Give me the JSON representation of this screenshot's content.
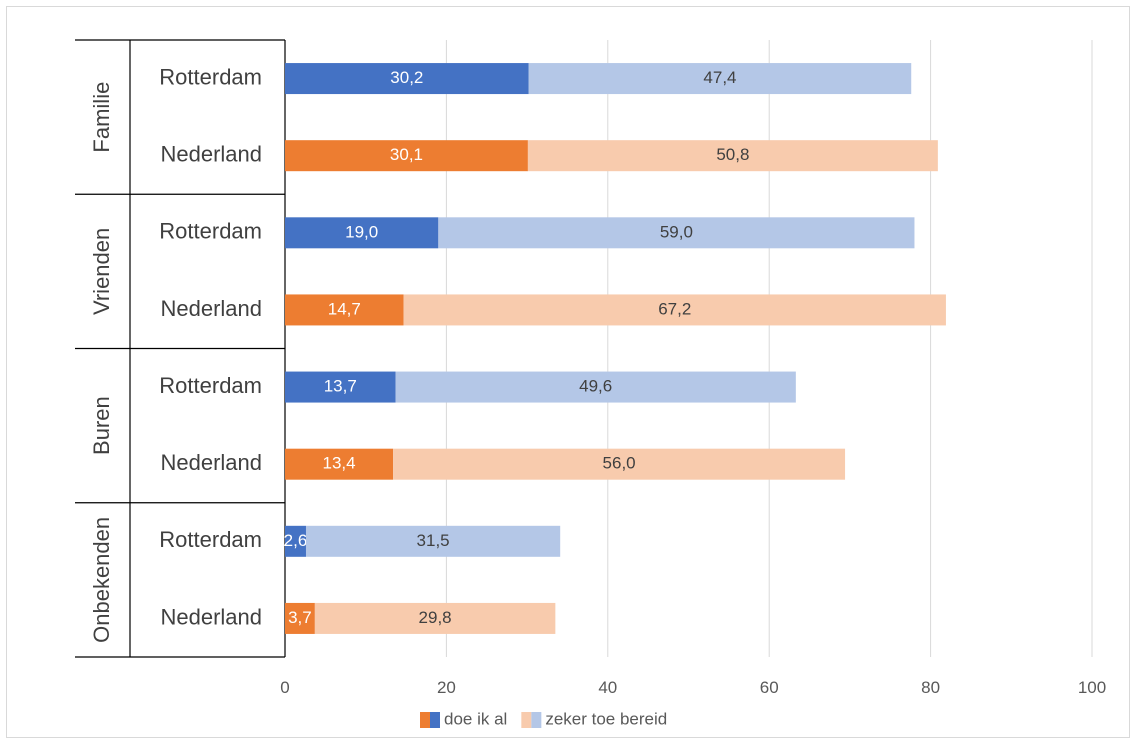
{
  "chart_data": {
    "type": "bar",
    "orientation": "horizontal",
    "stacked": true,
    "groups": [
      {
        "label": "Familie",
        "rows": [
          {
            "label": "Rotterdam",
            "values": [
              30.2,
              47.4
            ],
            "labels": [
              "30,2",
              "47,4"
            ]
          },
          {
            "label": "Nederland",
            "values": [
              30.1,
              50.8
            ],
            "labels": [
              "30,1",
              "50,8"
            ]
          }
        ]
      },
      {
        "label": "Vrienden",
        "rows": [
          {
            "label": "Rotterdam",
            "values": [
              19.0,
              59.0
            ],
            "labels": [
              "19,0",
              "59,0"
            ]
          },
          {
            "label": "Nederland",
            "values": [
              14.7,
              67.2
            ],
            "labels": [
              "14,7",
              "67,2"
            ]
          }
        ]
      },
      {
        "label": "Buren",
        "rows": [
          {
            "label": "Rotterdam",
            "values": [
              13.7,
              49.6
            ],
            "labels": [
              "13,7",
              "49,6"
            ]
          },
          {
            "label": "Nederland",
            "values": [
              13.4,
              56.0
            ],
            "labels": [
              "13,4",
              "56,0"
            ]
          }
        ]
      },
      {
        "label": "Onbekenden",
        "rows": [
          {
            "label": "Rotterdam",
            "values": [
              2.6,
              31.5
            ],
            "labels": [
              "2,6",
              "31,5"
            ]
          },
          {
            "label": "Nederland",
            "values": [
              3.7,
              29.8
            ],
            "labels": [
              "3,7",
              "29,8"
            ]
          }
        ]
      }
    ],
    "xlim": [
      0,
      100
    ],
    "xticks": [
      "0",
      "20",
      "40",
      "60",
      "80",
      "100"
    ],
    "grid": "vertical",
    "legend": [
      {
        "label": "doe ik al",
        "colors": [
          "#ed7d31",
          "#4472c4"
        ]
      },
      {
        "label": "zeker toe bereid",
        "colors": [
          "#f8cbad",
          "#b4c7e7"
        ]
      }
    ],
    "legend_position": "bottom",
    "colors": {
      "Rotterdam": [
        "#4472c4",
        "#b4c7e7"
      ],
      "Nederland": [
        "#ed7d31",
        "#f8cbad"
      ]
    }
  }
}
